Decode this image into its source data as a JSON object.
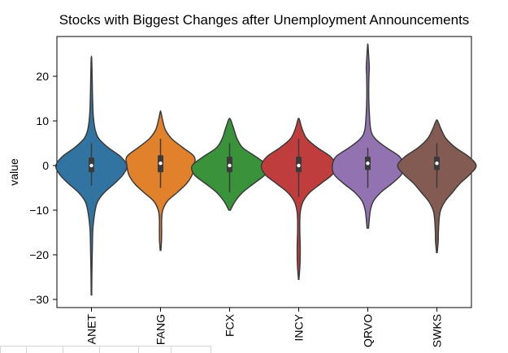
{
  "chart_data": {
    "type": "violin",
    "title": "Stocks with Biggest Changes after Unemployment Announcements",
    "xlabel": "",
    "ylabel": "value",
    "ylim": [
      -32,
      30
    ],
    "yticks": [
      -30,
      -20,
      -10,
      0,
      10,
      20
    ],
    "categories": [
      "ANET",
      "FANG",
      "FCX",
      "INCY",
      "QRVO",
      "SWKS"
    ],
    "colors": [
      "#3274a1",
      "#e1812c",
      "#3a923a",
      "#c03d3e",
      "#9372b2",
      "#845b53"
    ],
    "series": [
      {
        "name": "ANET",
        "min": -29,
        "max": 24,
        "q1": -1.5,
        "median": 0,
        "q3": 1.8,
        "whisker_low": -4.5,
        "whisker_high": 5,
        "density": [
          [
            -29,
            0.006
          ],
          [
            -24,
            0.012
          ],
          [
            -18,
            0.025
          ],
          [
            -14,
            0.04
          ],
          [
            -10,
            0.1
          ],
          [
            -8,
            0.17
          ],
          [
            -6,
            0.35
          ],
          [
            -4,
            0.62
          ],
          [
            -2,
            0.85
          ],
          [
            0,
            0.95
          ],
          [
            2,
            0.78
          ],
          [
            4,
            0.45
          ],
          [
            6,
            0.2
          ],
          [
            8,
            0.1
          ],
          [
            11,
            0.05
          ],
          [
            15,
            0.03
          ],
          [
            20,
            0.018
          ],
          [
            24,
            0.006
          ]
        ]
      },
      {
        "name": "FANG",
        "min": -19,
        "max": 12,
        "q1": -1.5,
        "median": 0.5,
        "q3": 2.3,
        "whisker_low": -5,
        "whisker_high": 6,
        "density": [
          [
            -19,
            0.008
          ],
          [
            -17,
            0.025
          ],
          [
            -15,
            0.03
          ],
          [
            -12,
            0.03
          ],
          [
            -10,
            0.06
          ],
          [
            -8,
            0.18
          ],
          [
            -6,
            0.45
          ],
          [
            -4,
            0.7
          ],
          [
            -2,
            0.85
          ],
          [
            0,
            0.9
          ],
          [
            2,
            0.9
          ],
          [
            4,
            0.6
          ],
          [
            6,
            0.3
          ],
          [
            8,
            0.13
          ],
          [
            10,
            0.06
          ],
          [
            12,
            0.008
          ]
        ]
      },
      {
        "name": "FCX",
        "min": -10,
        "max": 10.5,
        "q1": -1.5,
        "median": 0,
        "q3": 2,
        "whisker_low": -6,
        "whisker_high": 5,
        "density": [
          [
            -10,
            0.02
          ],
          [
            -8,
            0.15
          ],
          [
            -6,
            0.35
          ],
          [
            -4,
            0.65
          ],
          [
            -2,
            0.95
          ],
          [
            0,
            1.0
          ],
          [
            2,
            0.7
          ],
          [
            4,
            0.35
          ],
          [
            6,
            0.2
          ],
          [
            8,
            0.12
          ],
          [
            10,
            0.04
          ],
          [
            10.5,
            0.01
          ]
        ]
      },
      {
        "name": "INCY",
        "min": -25.5,
        "max": 10.5,
        "q1": -1.5,
        "median": 0,
        "q3": 2,
        "whisker_low": -7,
        "whisker_high": 6,
        "density": [
          [
            -25.5,
            0.006
          ],
          [
            -22,
            0.035
          ],
          [
            -18,
            0.04
          ],
          [
            -15,
            0.03
          ],
          [
            -12,
            0.03
          ],
          [
            -10,
            0.05
          ],
          [
            -8,
            0.12
          ],
          [
            -6,
            0.3
          ],
          [
            -4,
            0.6
          ],
          [
            -2,
            0.9
          ],
          [
            0,
            1.0
          ],
          [
            2,
            0.85
          ],
          [
            4,
            0.5
          ],
          [
            6,
            0.22
          ],
          [
            8,
            0.1
          ],
          [
            10,
            0.03
          ],
          [
            10.5,
            0.01
          ]
        ]
      },
      {
        "name": "QRVO",
        "min": -14,
        "max": 27,
        "q1": -1,
        "median": 0.5,
        "q3": 2,
        "whisker_low": -5,
        "whisker_high": 4,
        "density": [
          [
            -14,
            0.02
          ],
          [
            -12,
            0.04
          ],
          [
            -10,
            0.07
          ],
          [
            -8,
            0.15
          ],
          [
            -6,
            0.35
          ],
          [
            -4,
            0.65
          ],
          [
            -2,
            0.9
          ],
          [
            0,
            0.95
          ],
          [
            2,
            0.85
          ],
          [
            4,
            0.5
          ],
          [
            6,
            0.2
          ],
          [
            8,
            0.08
          ],
          [
            12,
            0.04
          ],
          [
            16,
            0.025
          ],
          [
            20,
            0.03
          ],
          [
            22,
            0.04
          ],
          [
            25,
            0.02
          ],
          [
            27,
            0.005
          ]
        ]
      },
      {
        "name": "SWKS",
        "min": -19.5,
        "max": 10,
        "q1": -1,
        "median": 0.5,
        "q3": 2,
        "whisker_low": -5,
        "whisker_high": 5,
        "density": [
          [
            -19.5,
            0.008
          ],
          [
            -17,
            0.035
          ],
          [
            -15,
            0.04
          ],
          [
            -12,
            0.06
          ],
          [
            -10,
            0.1
          ],
          [
            -8,
            0.22
          ],
          [
            -6,
            0.42
          ],
          [
            -4,
            0.62
          ],
          [
            -2,
            0.88
          ],
          [
            0,
            1.05
          ],
          [
            2,
            0.85
          ],
          [
            4,
            0.5
          ],
          [
            6,
            0.25
          ],
          [
            8,
            0.12
          ],
          [
            10,
            0.02
          ]
        ]
      }
    ]
  }
}
